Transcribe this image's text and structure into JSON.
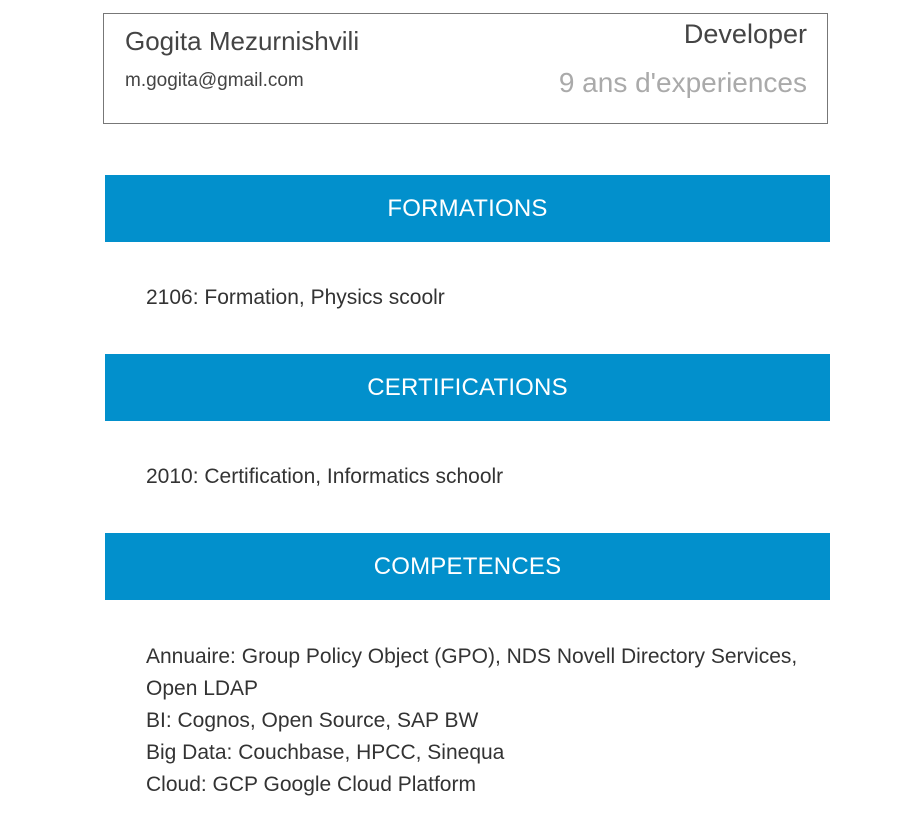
{
  "profile": {
    "name": "Gogita Mezurnishvili",
    "email": "m.gogita@gmail.com",
    "role": "Developer",
    "experience": "9 ans d'experiences"
  },
  "sections": {
    "formations": {
      "title": "FORMATIONS",
      "entries": [
        "2106: Formation, Physics scoolr"
      ]
    },
    "certifications": {
      "title": "CERTIFICATIONS",
      "entries": [
        "2010: Certification, Informatics schoolr"
      ]
    },
    "competences": {
      "title": "COMPETENCES",
      "lines": [
        "Annuaire: Group Policy Object (GPO), NDS Novell Directory Services,",
        "Open LDAP",
        "BI: Cognos, Open Source, SAP BW",
        "Big Data: Couchbase, HPCC, Sinequa",
        "Cloud: GCP Google Cloud Platform"
      ]
    }
  },
  "colors": {
    "section_bar": "#0290cc",
    "experience_text": "#aaaaaa",
    "card_border": "#777777"
  }
}
